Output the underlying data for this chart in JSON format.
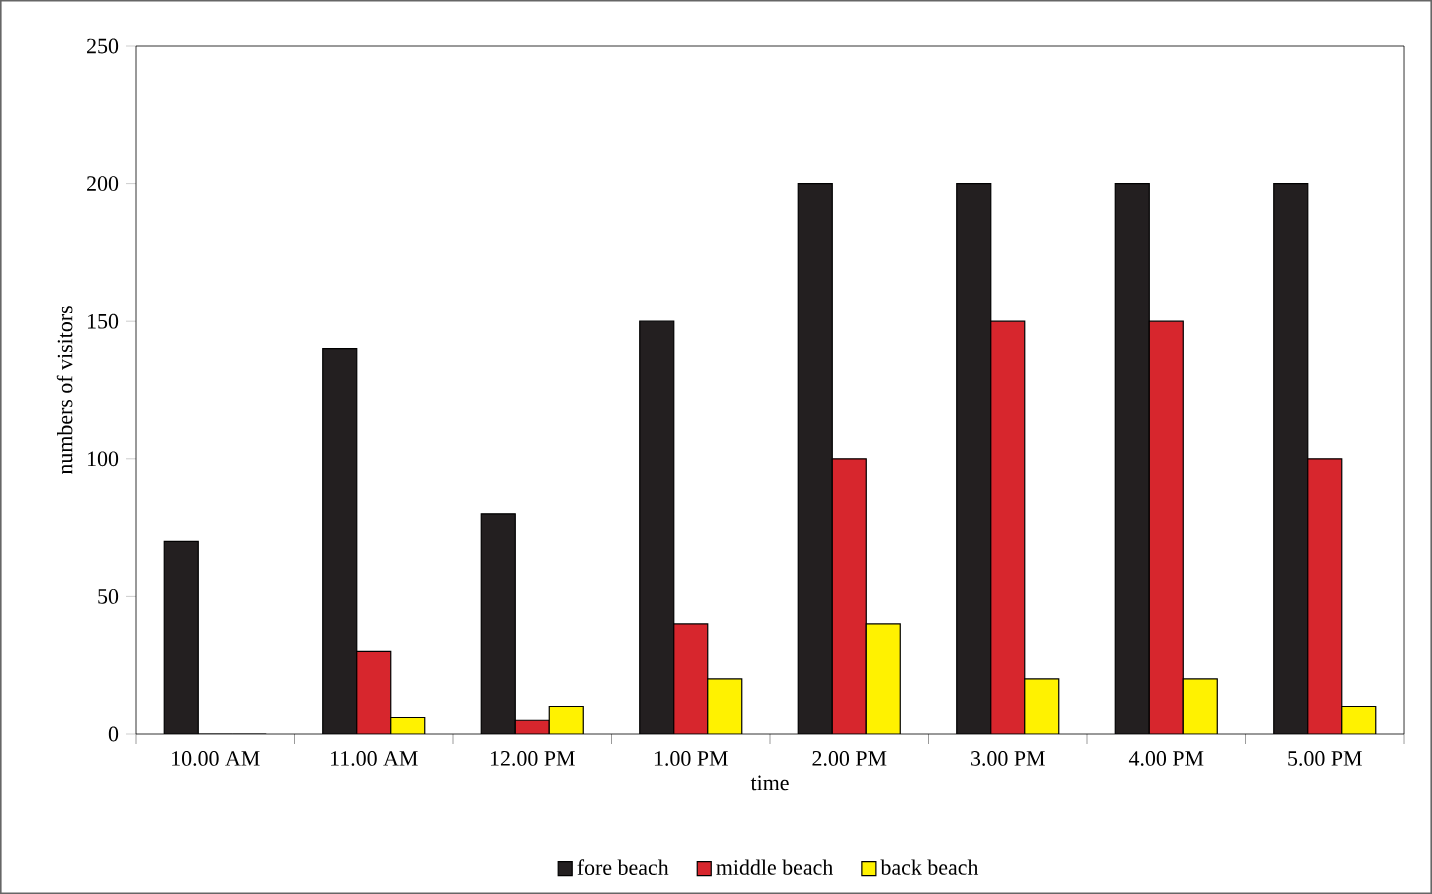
{
  "chart_data": {
    "type": "bar",
    "xlabel": "time",
    "ylabel": "numbers of visitors",
    "categories": [
      "10.00 AM",
      "11.00 AM",
      "12.00 PM",
      "1.00 PM",
      "2.00 PM",
      "3.00 PM",
      "4.00 PM",
      "5.00 PM"
    ],
    "series": [
      {
        "name": "fore beach",
        "color": "#231f20",
        "values": [
          70,
          140,
          80,
          150,
          200,
          200,
          200,
          200
        ]
      },
      {
        "name": "middle beach",
        "color": "#d7262d",
        "values": [
          0,
          30,
          5,
          40,
          100,
          150,
          150,
          100
        ]
      },
      {
        "name": "back beach",
        "color": "#fff200",
        "values": [
          0,
          6,
          10,
          20,
          40,
          20,
          20,
          10
        ]
      }
    ],
    "ylim": [
      0,
      250
    ],
    "yticks": [
      0,
      50,
      100,
      150,
      200,
      250
    ],
    "legend": "bottom"
  }
}
